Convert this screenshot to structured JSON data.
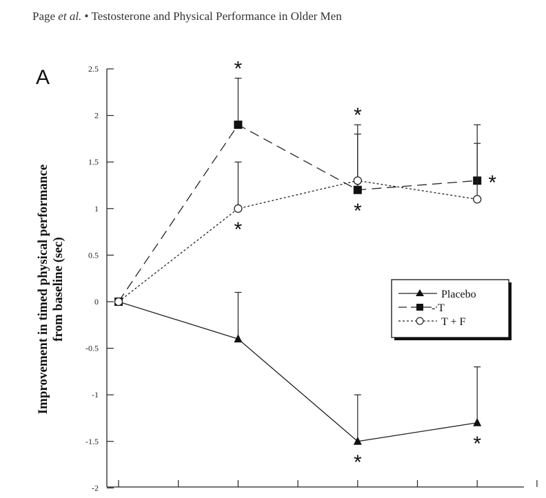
{
  "header": {
    "author": "Page",
    "etal": "et al.",
    "bullet": "•",
    "title": "Testosterone and Physical Performance in Older Men"
  },
  "chart_data": {
    "type": "line",
    "panel_label": "A",
    "ylabel_lines": [
      "Improvement in timed physical performance",
      "from baseline (sec)"
    ],
    "xlabel": "",
    "ylim": [
      -2,
      2.5
    ],
    "yticks": [
      "2.5",
      "2",
      "1.5",
      "1",
      "0.5",
      "0",
      "-0.5",
      "-1",
      "-1.5",
      "-2"
    ],
    "x_tick_count": 8,
    "x": [
      0,
      2,
      4,
      6
    ],
    "grid": false,
    "legend_position": "center-right",
    "series": [
      {
        "name": "Placebo",
        "marker": "filled-triangle",
        "line": "solid",
        "values": [
          0,
          -0.4,
          -1.5,
          -1.3
        ],
        "error_upper": [
          null,
          0.1,
          -1.0,
          -0.7
        ],
        "significant": [
          {
            "x": 4,
            "pos": "below"
          },
          {
            "x": 6,
            "pos": "below"
          }
        ]
      },
      {
        "name": "- T",
        "marker": "filled-square",
        "line": "dashed",
        "values": [
          0,
          1.9,
          1.2,
          1.3
        ],
        "error_upper": [
          null,
          2.4,
          1.8,
          1.7
        ],
        "significant": [
          {
            "x": 2,
            "pos": "above"
          },
          {
            "x": 4,
            "pos": "below"
          },
          {
            "x": 6,
            "pos": "right"
          }
        ]
      },
      {
        "name": "T + F",
        "marker": "open-circle",
        "line": "dotted",
        "values": [
          0,
          1.0,
          1.3,
          1.1
        ],
        "error_upper": [
          null,
          1.5,
          1.9,
          1.9
        ],
        "significant": [
          {
            "x": 2,
            "pos": "below"
          },
          {
            "x": 4,
            "pos": "above"
          }
        ]
      }
    ],
    "significance_marker": "*"
  }
}
